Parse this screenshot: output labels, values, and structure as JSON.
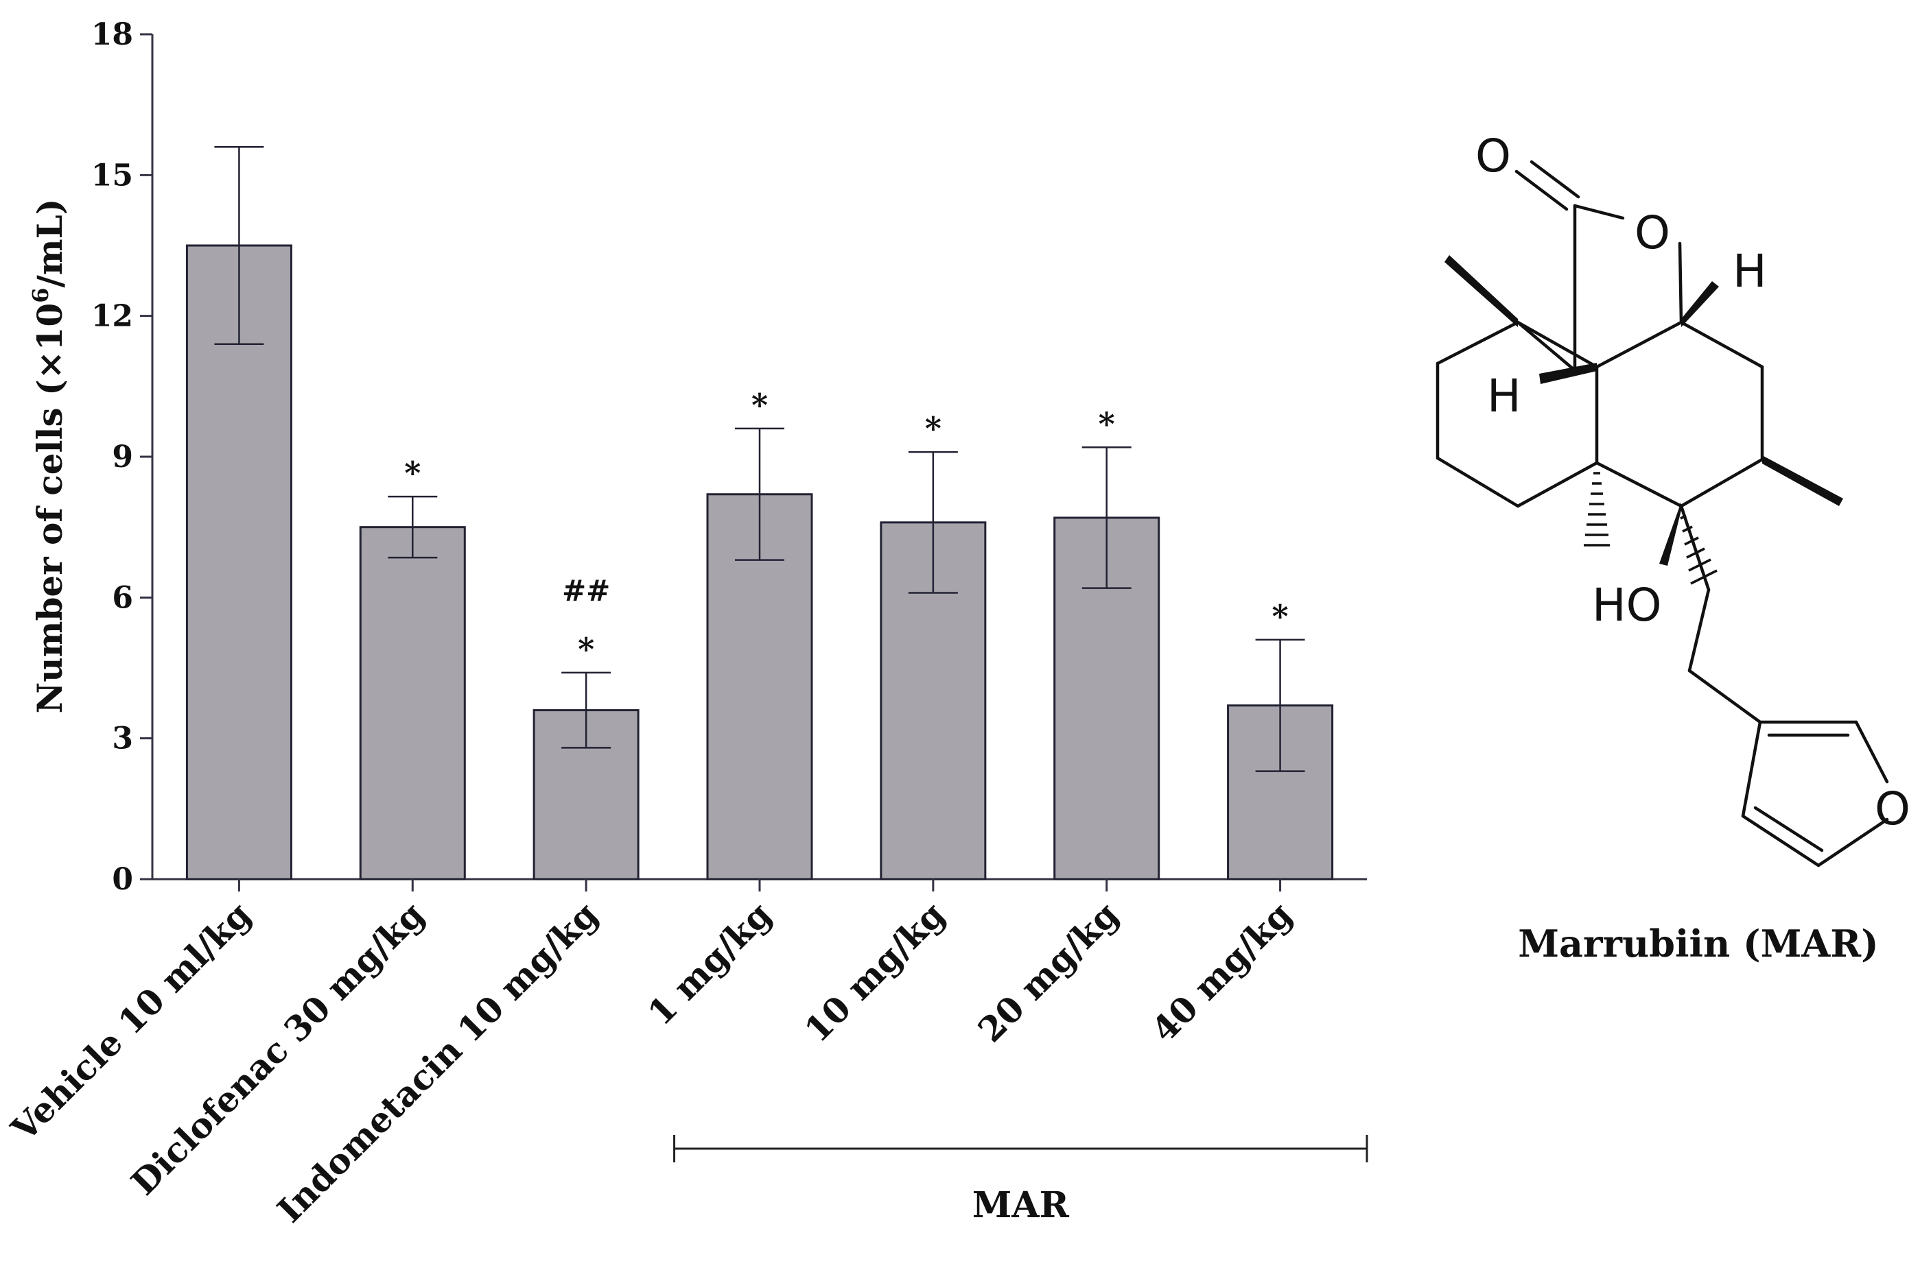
{
  "chart_data": {
    "type": "bar",
    "ylabel": "Number of cells (×10⁶/mL)",
    "ylabel_parts": {
      "pre": "Number of cells (×10",
      "sup": "6",
      "post": "/mL)"
    },
    "ylim": [
      0,
      18
    ],
    "yticks": [
      "0",
      "3",
      "6",
      "9",
      "12",
      "15",
      "18"
    ],
    "categories": [
      "Vehicle 10 ml/kg",
      "Diclofenac 30 mg/kg",
      "Indometacin 10 mg/kg",
      "1 mg/kg",
      "10 mg/kg",
      "20 mg/kg",
      "40 mg/kg"
    ],
    "values": [
      13.5,
      7.5,
      3.6,
      8.2,
      7.6,
      7.7,
      3.7
    ],
    "errors": [
      2.1,
      0.65,
      0.8,
      1.4,
      1.5,
      1.5,
      1.4
    ],
    "annotations": [
      "",
      "*",
      "*",
      "*",
      "*",
      "*",
      "*"
    ],
    "annotations_extra": [
      "",
      "",
      "##",
      "",
      "",
      "",
      ""
    ],
    "group_label": "MAR",
    "group_span": [
      3,
      6
    ],
    "bar_color": "#a7a5ab",
    "grid": false,
    "legend": "none"
  },
  "structure": {
    "caption": "Marrubiin (MAR)",
    "atoms": {
      "o_carbonyl": "O",
      "o_ring": "O",
      "h_top": "H",
      "h_left": "H",
      "ho": "HO",
      "o_furan": "O"
    }
  }
}
